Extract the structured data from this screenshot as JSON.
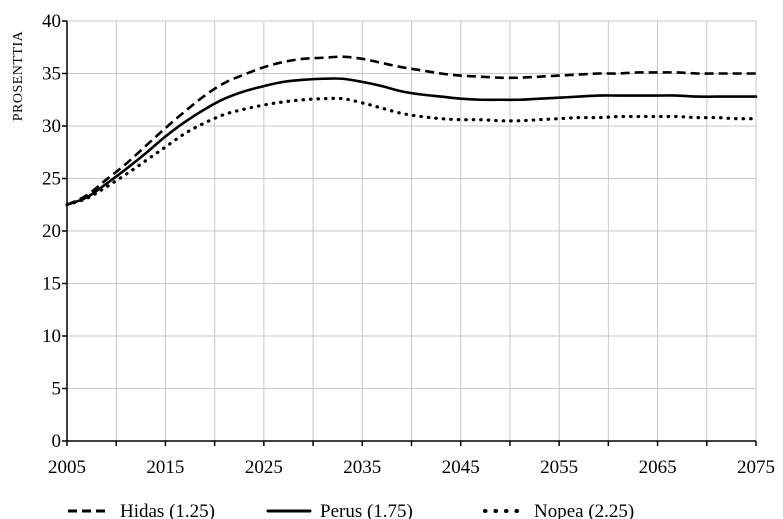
{
  "chart_data": {
    "type": "line",
    "xlabel": "",
    "ylabel": "PROSENTTIA",
    "xlim": [
      2005,
      2075
    ],
    "ylim": [
      0,
      40
    ],
    "grid": true,
    "legend_position": "bottom",
    "x_ticks": [
      2005,
      2015,
      2025,
      2035,
      2045,
      2055,
      2065,
      2075
    ],
    "y_ticks": [
      0,
      5,
      10,
      15,
      20,
      25,
      30,
      35,
      40
    ],
    "x_minor_step": 5,
    "x": [
      2005,
      2007,
      2009,
      2011,
      2013,
      2015,
      2017,
      2019,
      2021,
      2023,
      2025,
      2027,
      2029,
      2031,
      2033,
      2035,
      2037,
      2039,
      2041,
      2043,
      2045,
      2047,
      2049,
      2051,
      2053,
      2055,
      2057,
      2059,
      2061,
      2063,
      2065,
      2067,
      2069,
      2071,
      2073,
      2075
    ],
    "series": [
      {
        "name": "Hidas (1.25)",
        "style": "dashed",
        "color": "#000000",
        "values": [
          22.5,
          23.4,
          24.9,
          26.4,
          28.1,
          29.8,
          31.4,
          32.9,
          34.1,
          34.9,
          35.6,
          36.1,
          36.4,
          36.5,
          36.6,
          36.4,
          36.0,
          35.6,
          35.3,
          35.0,
          34.8,
          34.7,
          34.6,
          34.6,
          34.7,
          34.8,
          34.9,
          35.0,
          35.0,
          35.1,
          35.1,
          35.1,
          35.0,
          35.0,
          35.0,
          35.0
        ]
      },
      {
        "name": "Perus (1.75)",
        "style": "solid",
        "color": "#000000",
        "values": [
          22.5,
          23.2,
          24.5,
          25.9,
          27.4,
          29.0,
          30.4,
          31.6,
          32.6,
          33.3,
          33.8,
          34.2,
          34.4,
          34.5,
          34.5,
          34.2,
          33.8,
          33.3,
          33.0,
          32.8,
          32.6,
          32.5,
          32.5,
          32.5,
          32.6,
          32.7,
          32.8,
          32.9,
          32.9,
          32.9,
          32.9,
          32.9,
          32.8,
          32.8,
          32.8,
          32.8
        ]
      },
      {
        "name": "Nopea (2.25)",
        "style": "dotted",
        "color": "#000000",
        "values": [
          22.5,
          23.1,
          24.2,
          25.4,
          26.7,
          28.0,
          29.3,
          30.3,
          31.1,
          31.6,
          32.0,
          32.3,
          32.5,
          32.6,
          32.6,
          32.2,
          31.7,
          31.2,
          30.9,
          30.7,
          30.6,
          30.6,
          30.5,
          30.5,
          30.6,
          30.7,
          30.8,
          30.8,
          30.9,
          30.9,
          30.9,
          30.9,
          30.8,
          30.8,
          30.7,
          30.7
        ]
      }
    ]
  }
}
